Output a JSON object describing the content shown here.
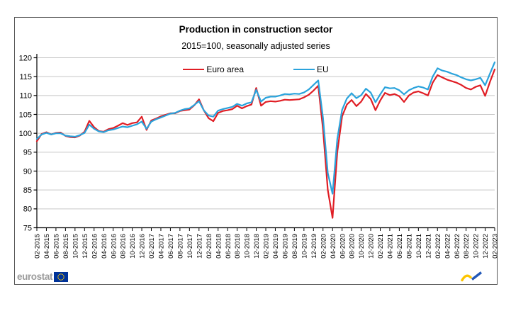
{
  "chart_data": {
    "type": "line",
    "title": "Production in construction sector",
    "subtitle": "2015=100, seasonally adjusted series",
    "ylim": [
      75,
      120
    ],
    "ytick_step": 5,
    "x_tick_every": 2,
    "grid": "horizontal",
    "legend_position": "top-center",
    "x": [
      "02-2015",
      "03-2015",
      "04-2015",
      "05-2015",
      "06-2015",
      "07-2015",
      "08-2015",
      "09-2015",
      "10-2015",
      "11-2015",
      "12-2015",
      "01-2016",
      "02-2016",
      "03-2016",
      "04-2016",
      "05-2016",
      "06-2016",
      "07-2016",
      "08-2016",
      "09-2016",
      "10-2016",
      "11-2016",
      "12-2016",
      "01-2017",
      "02-2017",
      "03-2017",
      "04-2017",
      "05-2017",
      "06-2017",
      "07-2017",
      "08-2017",
      "09-2017",
      "10-2017",
      "11-2017",
      "12-2017",
      "01-2018",
      "02-2018",
      "03-2018",
      "04-2018",
      "05-2018",
      "06-2018",
      "07-2018",
      "08-2018",
      "09-2018",
      "10-2018",
      "11-2018",
      "12-2018",
      "01-2019",
      "02-2019",
      "03-2019",
      "04-2019",
      "05-2019",
      "06-2019",
      "07-2019",
      "08-2019",
      "09-2019",
      "10-2019",
      "11-2019",
      "12-2019",
      "01-2020",
      "02-2020",
      "03-2020",
      "04-2020",
      "05-2020",
      "06-2020",
      "07-2020",
      "08-2020",
      "09-2020",
      "10-2020",
      "11-2020",
      "12-2020",
      "01-2021",
      "02-2021",
      "03-2021",
      "04-2021",
      "05-2021",
      "06-2021",
      "07-2021",
      "08-2021",
      "09-2021",
      "10-2021",
      "11-2021",
      "12-2021",
      "01-2022",
      "02-2022",
      "03-2022",
      "04-2022",
      "05-2022",
      "06-2022",
      "07-2022",
      "08-2022",
      "09-2022",
      "10-2022",
      "11-2022",
      "12-2022",
      "01-2023",
      "02-2023"
    ],
    "series": [
      {
        "name": "Euro area",
        "color": "#e01e25",
        "values": [
          97.9,
          99.8,
          100.3,
          99.7,
          100.1,
          100.2,
          99.3,
          99.0,
          98.9,
          99.4,
          100.4,
          103.3,
          101.6,
          100.6,
          100.4,
          101.1,
          101.4,
          102.0,
          102.7,
          102.2,
          102.7,
          102.9,
          104.4,
          100.9,
          103.4,
          103.9,
          104.5,
          104.9,
          105.3,
          105.3,
          105.9,
          106.1,
          106.3,
          107.4,
          109.0,
          106.1,
          104.0,
          103.2,
          105.4,
          105.9,
          106.1,
          106.4,
          107.3,
          106.6,
          107.2,
          107.6,
          112.0,
          107.3,
          108.3,
          108.5,
          108.4,
          108.6,
          108.9,
          108.8,
          108.9,
          109.0,
          109.5,
          110.2,
          111.3,
          112.6,
          101.0,
          85.0,
          77.6,
          95.0,
          104.5,
          107.6,
          108.8,
          107.2,
          108.4,
          110.4,
          109.1,
          106.1,
          108.7,
          110.7,
          110.1,
          110.4,
          109.8,
          108.3,
          110.0,
          110.8,
          111.1,
          110.6,
          110.0,
          113.4,
          115.4,
          114.8,
          114.2,
          113.8,
          113.4,
          112.8,
          112.0,
          111.6,
          112.3,
          112.7,
          109.9,
          113.6,
          116.9
        ]
      },
      {
        "name": "EU",
        "color": "#2aa3dc",
        "values": [
          98.5,
          99.7,
          100.1,
          99.7,
          100.0,
          100.0,
          99.4,
          99.2,
          99.1,
          99.5,
          100.1,
          102.3,
          101.2,
          100.5,
          100.3,
          100.8,
          101.0,
          101.4,
          101.8,
          101.6,
          102.0,
          102.4,
          103.1,
          101.2,
          103.1,
          103.7,
          104.2,
          104.7,
          105.2,
          105.4,
          106.0,
          106.4,
          106.6,
          107.5,
          108.5,
          106.1,
          104.7,
          104.4,
          106.0,
          106.4,
          106.7,
          107.0,
          107.8,
          107.3,
          107.9,
          108.2,
          111.5,
          108.4,
          109.4,
          109.7,
          109.7,
          110.0,
          110.4,
          110.3,
          110.5,
          110.4,
          110.8,
          111.6,
          112.8,
          114.0,
          104.0,
          89.5,
          84.0,
          98.5,
          106.2,
          109.2,
          110.6,
          109.3,
          110.1,
          111.8,
          110.8,
          108.2,
          110.3,
          112.2,
          111.9,
          112.0,
          111.4,
          110.3,
          111.4,
          112.0,
          112.4,
          112.1,
          111.6,
          115.0,
          117.2,
          116.6,
          116.3,
          115.8,
          115.4,
          114.8,
          114.3,
          114.0,
          114.3,
          114.7,
          112.7,
          115.8,
          118.8
        ]
      }
    ]
  },
  "footer": {
    "brand": "eurostat"
  },
  "icons": {
    "flag": "eu-flag-icon",
    "corner": "swoosh-icon"
  },
  "colors": {
    "grid": "#c6c6c6",
    "axis": "#000000",
    "frame_border": "#555555",
    "brand_text": "#9c9c9c",
    "flag_blue": "#003399",
    "flag_stars": "#ffcc00",
    "swoosh_yellow": "#fdc500",
    "swoosh_blue": "#2258b8"
  }
}
